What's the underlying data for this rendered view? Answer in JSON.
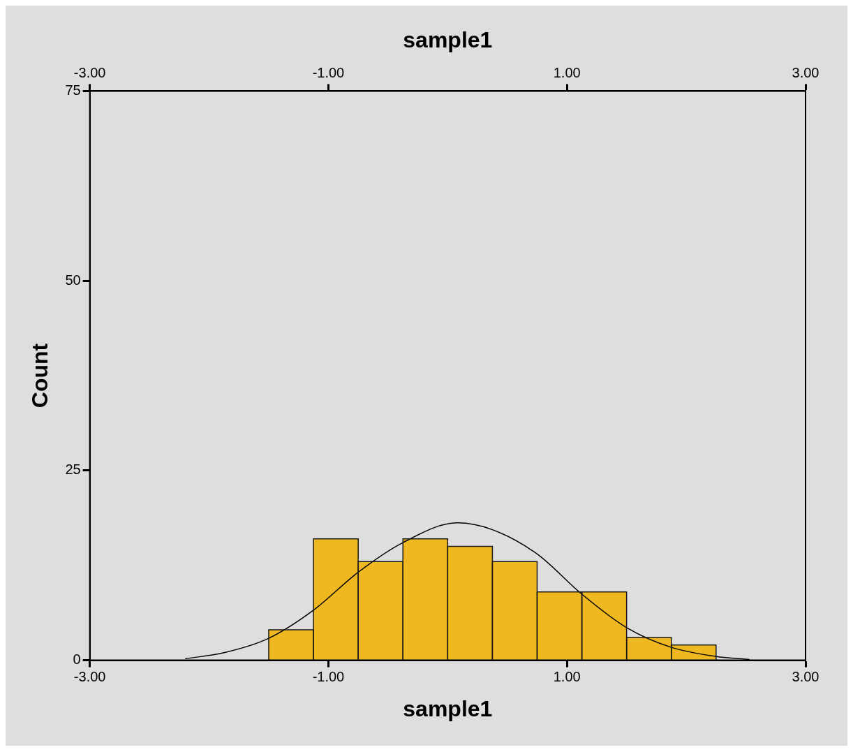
{
  "chart_data": {
    "type": "histogram",
    "xlabel": "sample1",
    "ylabel": "Count",
    "x2label": "sample1",
    "bins": [
      -1.5,
      -1.125,
      -0.75,
      -0.375,
      0,
      0.375,
      0.75,
      1.125,
      1.5,
      1.875,
      2.25
    ],
    "values": [
      4,
      16,
      13,
      16,
      15,
      13,
      9,
      9,
      3,
      2
    ],
    "color": "#f0b820",
    "series": [
      {
        "type": "line",
        "color": "#000000",
        "x": [
          -2.2,
          -1.875,
          -1.5,
          -1.125,
          -0.75,
          -0.375,
          0.08,
          0.375,
          0.75,
          1.125,
          1.5,
          1.875,
          2.25,
          2.53
        ],
        "values": [
          0.2,
          1,
          2.9,
          6.6,
          11.6,
          15.5,
          18.1,
          17.2,
          14,
          8.7,
          4.3,
          1.7,
          0.5,
          0.1
        ]
      }
    ],
    "xlim": [
      -3,
      3
    ],
    "xticks": [
      {
        "value": -3,
        "label": "-3.00"
      },
      {
        "value": -1,
        "label": "-1.00"
      },
      {
        "value": 1,
        "label": "1.00"
      },
      {
        "value": 3,
        "label": "3.00"
      }
    ],
    "x2lim": [
      -3,
      3
    ],
    "x2ticks": [
      {
        "value": -3,
        "label": "-3.00"
      },
      {
        "value": -1,
        "label": "-1.00"
      },
      {
        "value": 1,
        "label": "1.00"
      },
      {
        "value": 3,
        "label": "3.00"
      }
    ],
    "ylim": [
      0,
      75
    ],
    "yticks": [
      0,
      25,
      50,
      75
    ],
    "grid": false,
    "legend": false
  }
}
